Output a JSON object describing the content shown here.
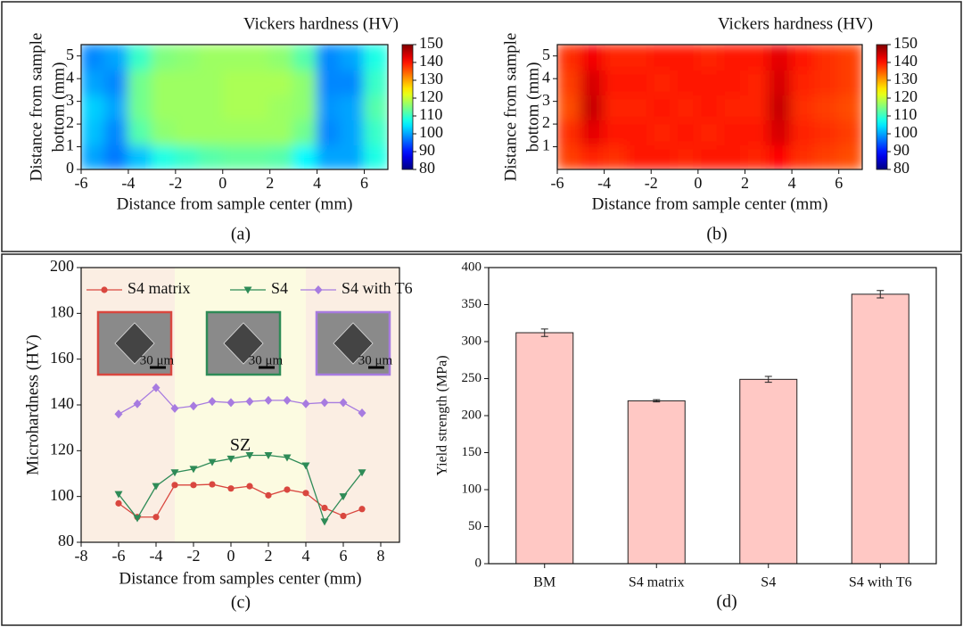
{
  "chart_data": [
    {
      "type": "heatmap",
      "panel_label": "(a)",
      "colorbar_label": "Vickers hardness (HV)",
      "xlabel": "Distance from sample center (mm)",
      "ylabel": [
        "Distance from sample",
        "bottom (mm)"
      ],
      "x": [
        -5.5,
        -4.5,
        -3.5,
        -2.5,
        -1.5,
        -0.5,
        0.5,
        1.5,
        2.5,
        3.5,
        4.5,
        5.5,
        6.5
      ],
      "y": [
        0.55,
        1.65,
        2.75,
        3.85,
        4.95
      ],
      "z": [
        [
          100,
          97,
          102,
          108,
          110,
          112,
          113,
          113,
          112,
          106,
          100,
          100,
          108
        ],
        [
          102,
          98,
          112,
          116,
          117,
          117,
          117,
          117,
          117,
          114,
          98,
          100,
          110
        ],
        [
          103,
          100,
          114,
          117,
          117,
          117,
          118,
          118,
          117,
          116,
          99,
          100,
          112
        ],
        [
          100,
          98,
          114,
          117,
          117,
          117,
          118,
          118,
          118,
          116,
          98,
          98,
          110
        ],
        [
          98,
          100,
          110,
          115,
          116,
          117,
          117,
          117,
          116,
          112,
          98,
          100,
          108
        ]
      ],
      "xlim": [
        -6,
        7
      ],
      "xticks": [
        -6,
        -4,
        -2,
        0,
        2,
        4,
        6
      ],
      "ylim": [
        0,
        5.5
      ],
      "yticks": [
        0,
        1,
        2,
        3,
        4,
        5
      ],
      "clim": [
        80,
        150
      ],
      "cticks": [
        80,
        90,
        100,
        110,
        120,
        130,
        140,
        150
      ],
      "colormap": "jet"
    },
    {
      "type": "heatmap",
      "panel_label": "(b)",
      "colorbar_label": "Vickers hardness (HV)",
      "xlabel": "Distance from sample center (mm)",
      "ylabel": [
        "Distance from sample",
        "bottom (mm)"
      ],
      "x": [
        -5.5,
        -4.5,
        -3.5,
        -2.5,
        -1.5,
        -0.5,
        0.5,
        1.5,
        2.5,
        3.5,
        4.5,
        5.5,
        6.5
      ],
      "y": [
        0.55,
        1.65,
        2.75,
        3.85,
        4.95
      ],
      "z": [
        [
          137,
          139,
          138,
          140,
          140,
          139,
          140,
          140,
          139,
          141,
          138,
          137,
          136
        ],
        [
          138,
          143,
          140,
          140,
          139,
          140,
          139,
          140,
          140,
          144,
          139,
          138,
          137
        ],
        [
          136,
          145,
          139,
          139,
          140,
          139,
          140,
          139,
          139,
          145,
          138,
          137,
          136
        ],
        [
          137,
          144,
          140,
          140,
          139,
          140,
          140,
          140,
          139,
          144,
          139,
          138,
          137
        ],
        [
          138,
          142,
          139,
          139,
          140,
          140,
          139,
          140,
          140,
          143,
          140,
          138,
          137
        ]
      ],
      "xlim": [
        -6,
        7
      ],
      "xticks": [
        -6,
        -4,
        -2,
        0,
        2,
        4,
        6
      ],
      "ylim": [
        0,
        5.5
      ],
      "yticks": [
        1,
        2,
        3,
        4,
        5
      ],
      "clim": [
        80,
        150
      ],
      "cticks": [
        80,
        90,
        100,
        110,
        120,
        130,
        140,
        150
      ],
      "colormap": "jet"
    },
    {
      "type": "line",
      "panel_label": "(c)",
      "xlabel": "Distance from samples center (mm)",
      "ylabel": "Microhardness (HV)",
      "x": [
        -6,
        -5,
        -4,
        -3,
        -2,
        -1,
        0,
        1,
        2,
        3,
        4,
        5,
        6,
        7
      ],
      "series": [
        {
          "name": "S4 matrix",
          "color": "#d9473f",
          "marker": "circle",
          "values": [
            97,
            91,
            91,
            105,
            105,
            105.3,
            103.5,
            104.5,
            100.5,
            103,
            101.5,
            95,
            91.5,
            94.5
          ]
        },
        {
          "name": "S4",
          "color": "#2e8b57",
          "marker": "triangle",
          "values": [
            101,
            90.5,
            104.5,
            110.5,
            112,
            115,
            116.5,
            118,
            118,
            117,
            113.5,
            89,
            100,
            110.5
          ]
        },
        {
          "name": "S4 with T6",
          "color": "#a77be0",
          "marker": "diamond",
          "values": [
            136,
            140.5,
            147.5,
            138.5,
            139.5,
            141.5,
            141,
            141.5,
            142,
            142,
            140.5,
            141,
            141,
            136.5
          ]
        }
      ],
      "background": "#fbeee3",
      "region": {
        "xlim": [
          -3,
          4
        ],
        "color": "#fcfbe1",
        "label": "SZ"
      },
      "insets": [
        {
          "scale_label": "30 μm",
          "color": "#d9473f"
        },
        {
          "scale_label": "30 μm",
          "color": "#2e8b57"
        },
        {
          "scale_label": "30 μm",
          "color": "#a77be0"
        }
      ],
      "xlim": [
        -8,
        9
      ],
      "xticks": [
        -8,
        -6,
        -4,
        -2,
        0,
        2,
        4,
        6,
        8
      ],
      "ylim": [
        80,
        200
      ],
      "yticks": [
        80,
        100,
        120,
        140,
        160,
        180,
        200
      ]
    },
    {
      "type": "bar",
      "panel_label": "(d)",
      "ylabel": "Yield strength (MPa)",
      "categories": [
        "BM",
        "S4 matrix",
        "S4",
        "S4 with T6"
      ],
      "values": [
        312,
        220,
        249,
        364
      ],
      "errors": [
        5,
        1.5,
        4,
        5
      ],
      "color": "#ffc8c4",
      "ylim": [
        0,
        400
      ],
      "yticks": [
        0,
        50,
        100,
        150,
        200,
        250,
        300,
        350,
        400
      ]
    }
  ]
}
